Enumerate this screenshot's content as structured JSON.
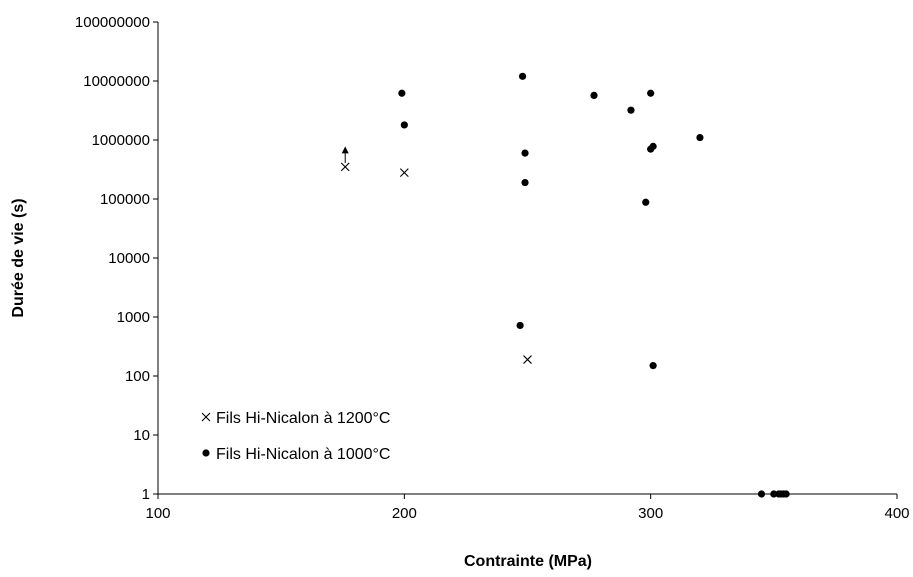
{
  "chart_data": {
    "type": "scatter",
    "title": "",
    "xlabel": "Contrainte (MPa)",
    "ylabel": "Durée de vie (s)",
    "x_scale": "linear",
    "y_scale": "log",
    "xlim": [
      100,
      400
    ],
    "ylim": [
      1,
      100000000
    ],
    "x_ticks": [
      100,
      200,
      300,
      400
    ],
    "x_tick_labels": [
      "100",
      "200",
      "300",
      "400"
    ],
    "y_ticks": [
      1,
      10,
      100,
      1000,
      10000,
      100000,
      1000000,
      10000000,
      100000000
    ],
    "y_tick_labels": [
      "1",
      "10",
      "100",
      "1000",
      "10000",
      "100000",
      "1000000",
      "10000000",
      "100000000"
    ],
    "grid": false,
    "legend_position": "bottom-left",
    "series": [
      {
        "name": "Fils Hi-Nicalon à 1200°C",
        "marker": "x",
        "color": "#000000",
        "points": [
          {
            "x": 176,
            "y": 350000
          },
          {
            "x": 200,
            "y": 280000
          },
          {
            "x": 250,
            "y": 190
          }
        ]
      },
      {
        "name": "Fils Hi-Nicalon à 1000°C",
        "marker": "dot",
        "color": "#000000",
        "points": [
          {
            "x": 199,
            "y": 6200000
          },
          {
            "x": 200,
            "y": 1800000
          },
          {
            "x": 248,
            "y": 12000000
          },
          {
            "x": 249,
            "y": 600000
          },
          {
            "x": 249,
            "y": 190000
          },
          {
            "x": 247,
            "y": 720
          },
          {
            "x": 277,
            "y": 5700000
          },
          {
            "x": 292,
            "y": 3200000
          },
          {
            "x": 298,
            "y": 88000
          },
          {
            "x": 300,
            "y": 6200000
          },
          {
            "x": 300,
            "y": 700000
          },
          {
            "x": 301,
            "y": 780000
          },
          {
            "x": 301,
            "y": 150
          },
          {
            "x": 320,
            "y": 1100000
          },
          {
            "x": 345,
            "y": 1
          },
          {
            "x": 350,
            "y": 1
          },
          {
            "x": 352,
            "y": 1
          },
          {
            "x": 353,
            "y": 1
          },
          {
            "x": 354,
            "y": 1
          },
          {
            "x": 355,
            "y": 1
          }
        ]
      }
    ],
    "annotations": [
      {
        "type": "arrow-up",
        "x": 176,
        "y_from": 350000,
        "y_to": 780000
      }
    ]
  }
}
